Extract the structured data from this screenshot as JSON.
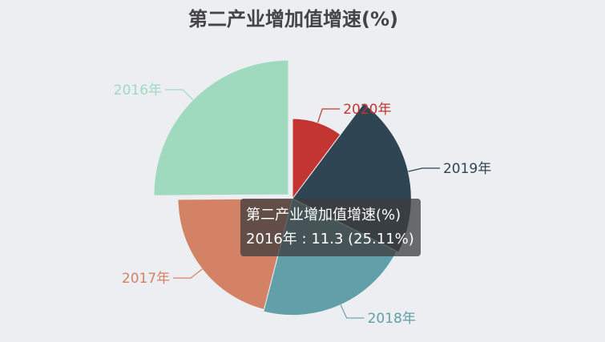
{
  "chart_data": {
    "type": "pie",
    "title": "第二产业增加值增速(%)",
    "categories": [
      "2020年",
      "2019年",
      "2018年",
      "2017年",
      "2016年"
    ],
    "values": [
      4.6,
      10.0,
      9.7,
      9.4,
      11.3
    ],
    "colors": {
      "2020年": "#c23531",
      "2019年": "#2f4554",
      "2018年": "#61a0a8",
      "2017年": "#d48265",
      "2016年": "#9fdabf"
    },
    "highlighted": "2016年",
    "tooltip": {
      "title": "第二产业增加值增速(%)",
      "text": "2016年 : 11.3 (25.11%)"
    }
  }
}
